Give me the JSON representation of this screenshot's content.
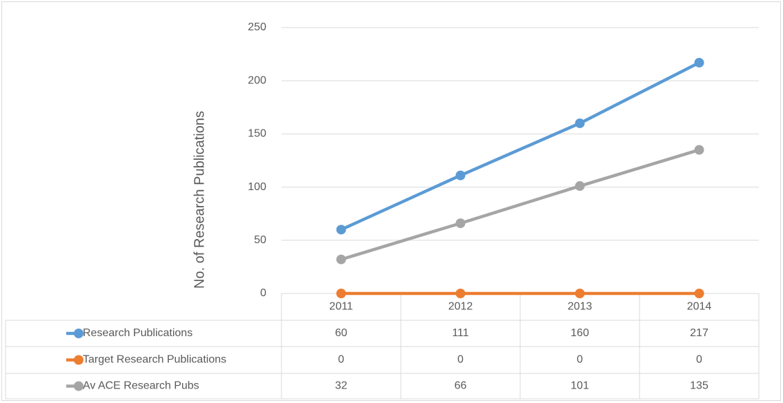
{
  "chart_data": {
    "type": "line",
    "y_axis_label": "No. of Research Publications",
    "categories": [
      "2011",
      "2012",
      "2013",
      "2014"
    ],
    "series": [
      {
        "name": "Research Publications",
        "color": "#5b9bd5",
        "values": [
          60,
          111,
          160,
          217
        ]
      },
      {
        "name": "Target Research Publications",
        "color": "#ed7d31",
        "values": [
          0,
          0,
          0,
          0
        ]
      },
      {
        "name": "Av ACE Research Pubs",
        "color": "#a5a5a5",
        "values": [
          32,
          66,
          101,
          135
        ]
      }
    ],
    "ylim": [
      0,
      250
    ],
    "yticks": [
      0,
      50,
      100,
      150,
      200,
      250
    ],
    "grid": true,
    "data_table": true
  }
}
